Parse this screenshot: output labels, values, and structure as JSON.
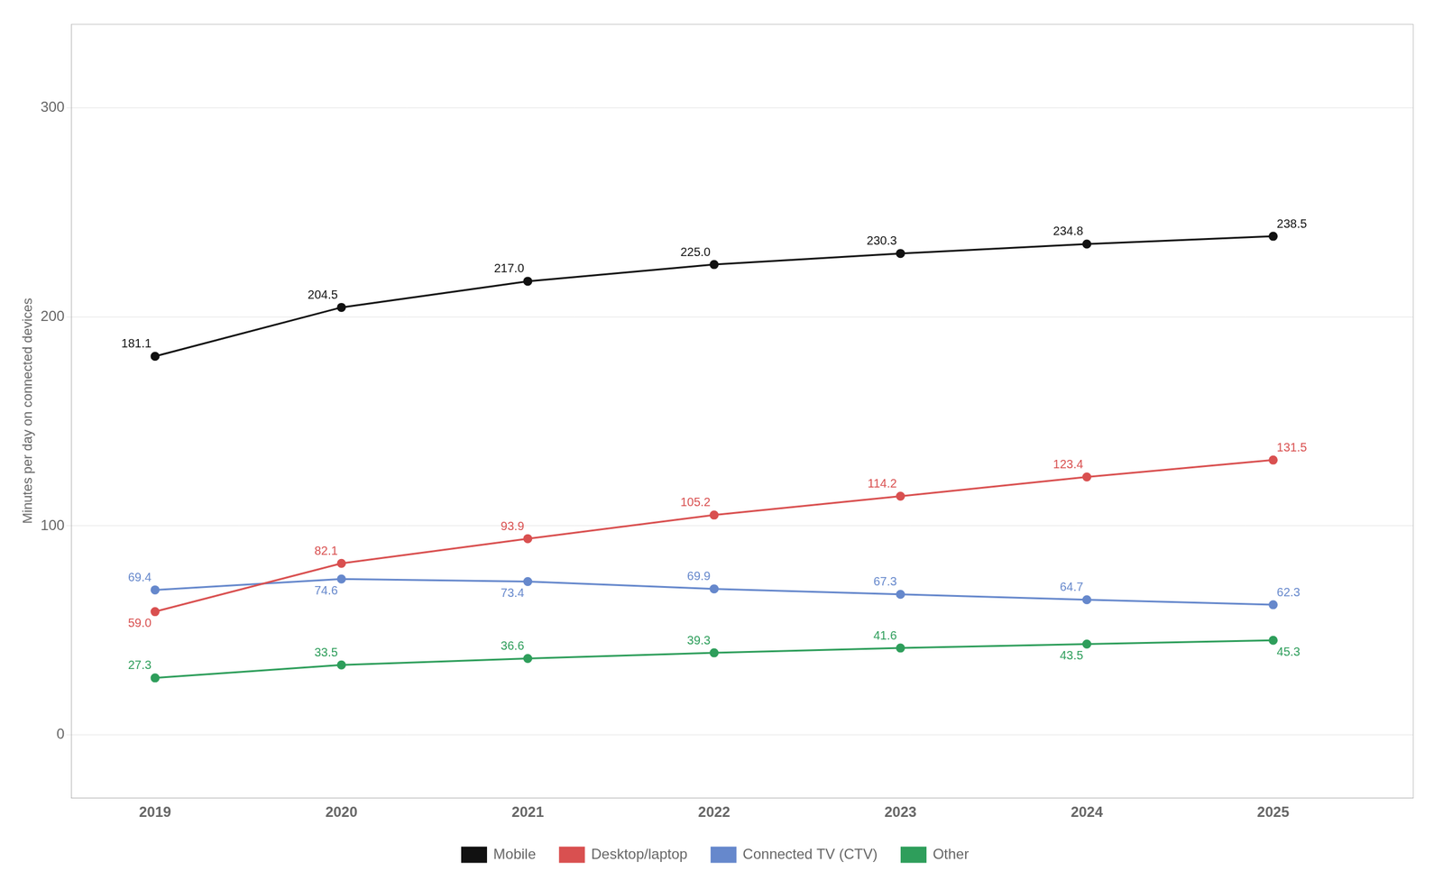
{
  "chart_data": {
    "type": "line",
    "ylabel": "Minutes per day on connected devices",
    "x": [
      2019,
      2020,
      2021,
      2022,
      2023,
      2024,
      2025
    ],
    "series": [
      {
        "name": "Mobile",
        "color": "#111111",
        "marker": "circle",
        "values": [
          181.1,
          204.5,
          217.0,
          225.0,
          230.3,
          234.8,
          238.5
        ],
        "value_labels": [
          "181.1",
          "204.5",
          "217.0",
          "225.0",
          "230.3",
          "234.8",
          "238.5"
        ]
      },
      {
        "name": "Desktop/laptop",
        "color": "#d95050",
        "marker": "circle",
        "values": [
          59.0,
          82.1,
          93.9,
          105.2,
          114.2,
          123.4,
          131.5
        ],
        "value_labels": [
          "59.0",
          "82.1",
          "93.9",
          "105.2",
          "114.2",
          "123.4",
          "131.5"
        ]
      },
      {
        "name": "Connected TV (CTV)",
        "color": "#6688cc",
        "marker": "circle",
        "values": [
          69.4,
          74.6,
          73.4,
          69.9,
          67.3,
          64.7,
          62.3
        ],
        "value_labels": [
          "69.4",
          "74.6",
          "73.4",
          "69.9",
          "67.3",
          "64.7",
          "62.3"
        ]
      },
      {
        "name": "Other",
        "color": "#2e9e5b",
        "marker": "circle",
        "values": [
          27.3,
          33.5,
          36.6,
          39.3,
          41.6,
          43.5,
          45.3
        ],
        "value_labels": [
          "27.3",
          "33.5",
          "36.6",
          "39.3",
          "41.6",
          "43.5",
          "45.3"
        ]
      }
    ],
    "xlim": [
      2018.55,
      2025.75
    ],
    "xticks": [
      2019,
      2020,
      2021,
      2022,
      2023,
      2024,
      2025
    ],
    "ylim": [
      -30,
      340
    ],
    "yticks": [
      0,
      100,
      200,
      300
    ],
    "grid": "y",
    "legend": "bottom",
    "data_labels": true
  }
}
